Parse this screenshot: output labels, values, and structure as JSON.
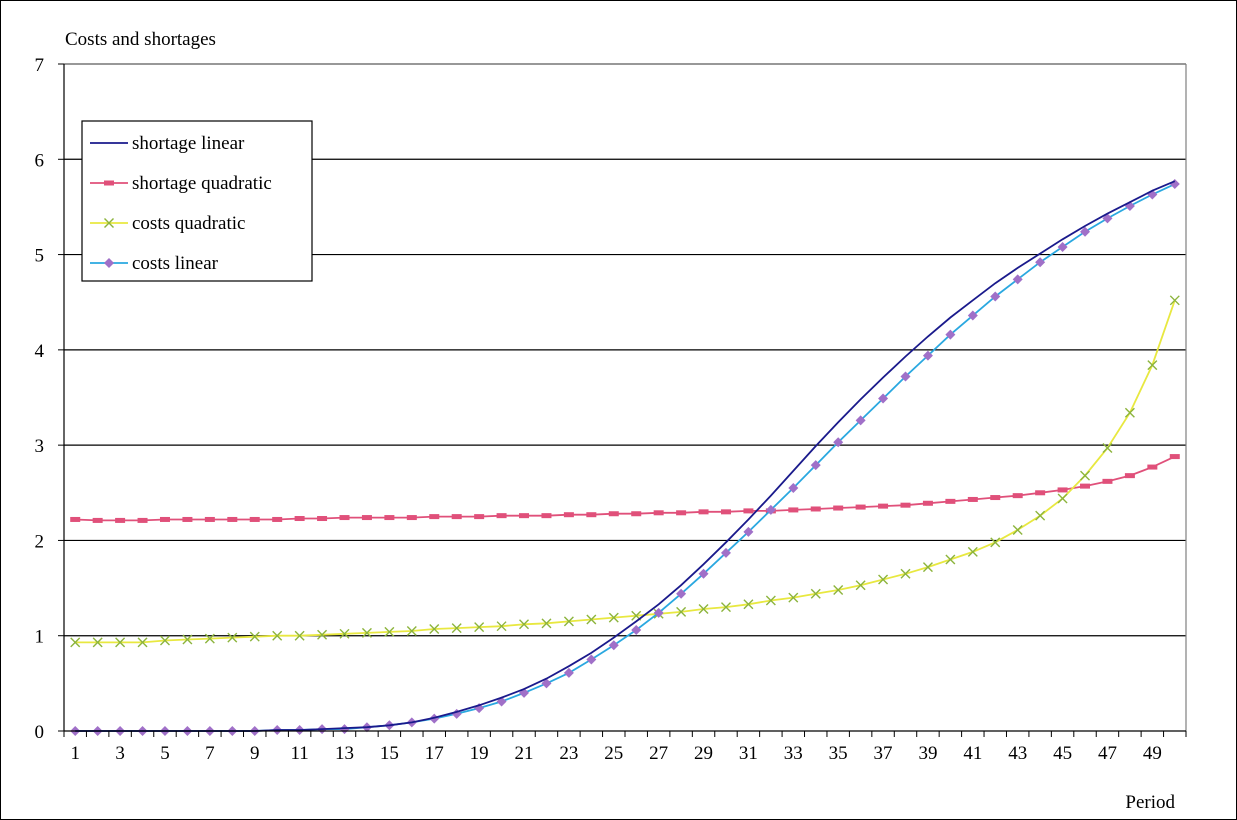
{
  "chart_data": {
    "type": "line",
    "title": "",
    "ylabel": "Costs and shortages",
    "xlabel": "Period",
    "ylim": [
      0,
      7
    ],
    "yticks": [
      "0",
      "1",
      "2",
      "3",
      "4",
      "5",
      "6",
      "7"
    ],
    "x": [
      1,
      2,
      3,
      4,
      5,
      6,
      7,
      8,
      9,
      10,
      11,
      12,
      13,
      14,
      15,
      16,
      17,
      18,
      19,
      20,
      21,
      22,
      23,
      24,
      25,
      26,
      27,
      28,
      29,
      30,
      31,
      32,
      33,
      34,
      35,
      36,
      37,
      38,
      39,
      40,
      41,
      42,
      43,
      44,
      45,
      46,
      47,
      48,
      49,
      50
    ],
    "xtick_labels": [
      "1",
      "3",
      "5",
      "7",
      "9",
      "11",
      "13",
      "15",
      "17",
      "19",
      "21",
      "23",
      "25",
      "27",
      "29",
      "31",
      "33",
      "35",
      "37",
      "39",
      "41",
      "43",
      "45",
      "47",
      "49"
    ],
    "grid": "horizontal",
    "legend_position": "top-left",
    "series": [
      {
        "name": "shortage linear",
        "color": "#1a1a8c",
        "marker": "none",
        "values": [
          0,
          0,
          0,
          0,
          0,
          0,
          0,
          0,
          0,
          0.01,
          0.01,
          0.02,
          0.03,
          0.04,
          0.06,
          0.09,
          0.14,
          0.2,
          0.27,
          0.35,
          0.44,
          0.55,
          0.68,
          0.82,
          0.98,
          1.15,
          1.33,
          1.53,
          1.75,
          1.98,
          2.22,
          2.47,
          2.73,
          2.99,
          3.24,
          3.48,
          3.71,
          3.93,
          4.14,
          4.34,
          4.52,
          4.7,
          4.86,
          5.01,
          5.16,
          5.3,
          5.43,
          5.55,
          5.67,
          5.77
        ]
      },
      {
        "name": "shortage quadratic",
        "color": "#e0507a",
        "marker": "dash",
        "values": [
          2.22,
          2.21,
          2.21,
          2.21,
          2.22,
          2.22,
          2.22,
          2.22,
          2.22,
          2.22,
          2.23,
          2.23,
          2.24,
          2.24,
          2.24,
          2.24,
          2.25,
          2.25,
          2.25,
          2.26,
          2.26,
          2.26,
          2.27,
          2.27,
          2.28,
          2.28,
          2.29,
          2.29,
          2.3,
          2.3,
          2.31,
          2.31,
          2.32,
          2.33,
          2.34,
          2.35,
          2.36,
          2.37,
          2.39,
          2.41,
          2.43,
          2.45,
          2.47,
          2.5,
          2.53,
          2.57,
          2.62,
          2.68,
          2.77,
          2.88
        ]
      },
      {
        "name": "costs quadratic",
        "color": "#e8e840",
        "marker": "x",
        "values": [
          0.93,
          0.93,
          0.93,
          0.93,
          0.95,
          0.96,
          0.97,
          0.98,
          0.99,
          1.0,
          1.0,
          1.01,
          1.02,
          1.03,
          1.04,
          1.05,
          1.07,
          1.08,
          1.09,
          1.1,
          1.12,
          1.13,
          1.15,
          1.17,
          1.19,
          1.21,
          1.23,
          1.25,
          1.28,
          1.3,
          1.33,
          1.37,
          1.4,
          1.44,
          1.48,
          1.53,
          1.59,
          1.65,
          1.72,
          1.8,
          1.88,
          1.98,
          2.11,
          2.26,
          2.44,
          2.68,
          2.97,
          3.34,
          3.84,
          4.52
        ]
      },
      {
        "name": "costs linear",
        "color": "#2aa8e0",
        "marker": "diamond",
        "marker_color": "#a070c8",
        "values": [
          0,
          0,
          0,
          0,
          0,
          0,
          0,
          0,
          0,
          0.01,
          0.01,
          0.02,
          0.02,
          0.04,
          0.06,
          0.09,
          0.13,
          0.18,
          0.24,
          0.31,
          0.4,
          0.5,
          0.61,
          0.75,
          0.9,
          1.06,
          1.24,
          1.44,
          1.65,
          1.87,
          2.09,
          2.32,
          2.55,
          2.79,
          3.03,
          3.26,
          3.49,
          3.72,
          3.94,
          4.16,
          4.36,
          4.56,
          4.74,
          4.92,
          5.08,
          5.24,
          5.38,
          5.51,
          5.63,
          5.74
        ]
      }
    ]
  }
}
